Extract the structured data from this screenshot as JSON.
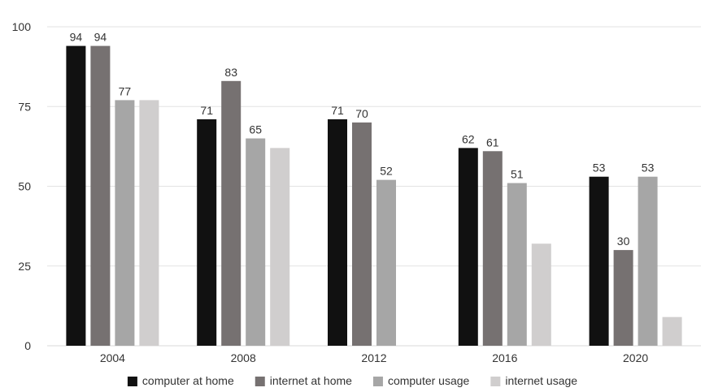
{
  "chart_data": {
    "type": "bar",
    "title": "",
    "xlabel": "",
    "ylabel": "",
    "categories": [
      "2004",
      "2008",
      "2012",
      "2016",
      "2020"
    ],
    "ylim": [
      0,
      100
    ],
    "yticks": [
      0,
      25,
      50,
      75,
      100
    ],
    "grid": true,
    "legend_position": "bottom",
    "series": [
      {
        "name": "computer at home",
        "color": "#111111",
        "values": [
          94,
          71,
          71,
          62,
          53
        ],
        "labels": [
          "94",
          "71",
          "71",
          "62",
          "53"
        ]
      },
      {
        "name": "internet at home",
        "color": "#767171",
        "values": [
          94,
          83,
          70,
          61,
          30
        ],
        "labels": [
          "94",
          "83",
          "70",
          "61",
          "30"
        ]
      },
      {
        "name": "computer usage",
        "color": "#a6a6a6",
        "values": [
          77,
          65,
          52,
          51,
          53
        ],
        "labels": [
          "77",
          "65",
          "52",
          "51",
          "53"
        ]
      },
      {
        "name": "internet usage",
        "color": "#d0cece",
        "values": [
          77,
          62,
          null,
          32,
          9
        ],
        "labels": [
          "",
          "",
          "",
          "",
          ""
        ]
      }
    ]
  }
}
